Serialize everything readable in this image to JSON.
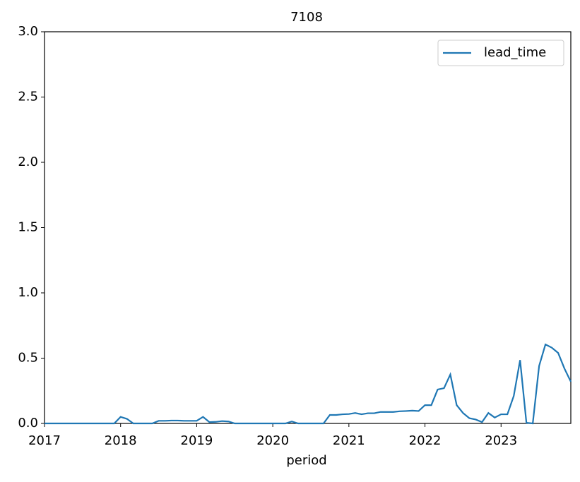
{
  "chart_data": {
    "type": "line",
    "title": "7108",
    "x_label": "period",
    "x": [
      2017,
      2017.0833,
      2017.1667,
      2017.25,
      2017.3333,
      2017.4167,
      2017.5,
      2017.5833,
      2017.6667,
      2017.75,
      2017.8333,
      2017.9167,
      2018,
      2018.0833,
      2018.1667,
      2018.25,
      2018.3333,
      2018.4167,
      2018.5,
      2018.5833,
      2018.6667,
      2018.75,
      2018.8333,
      2018.9167,
      2019,
      2019.0833,
      2019.1667,
      2019.25,
      2019.3333,
      2019.4167,
      2019.5,
      2019.5833,
      2019.6667,
      2019.75,
      2019.8333,
      2019.9167,
      2020,
      2020.0833,
      2020.1667,
      2020.25,
      2020.3333,
      2020.4167,
      2020.5,
      2020.5833,
      2020.6667,
      2020.75,
      2020.8333,
      2020.9167,
      2021,
      2021.0833,
      2021.1667,
      2021.25,
      2021.3333,
      2021.4167,
      2021.5,
      2021.5833,
      2021.6667,
      2021.75,
      2021.8333,
      2021.9167,
      2022,
      2022.0833,
      2022.1667,
      2022.25,
      2022.3333,
      2022.4167,
      2022.5,
      2022.5833,
      2022.6667,
      2022.75,
      2022.8333,
      2022.9167,
      2023,
      2023.0833,
      2023.1667,
      2023.25,
      2023.3333,
      2023.4167,
      2023.5,
      2023.5833,
      2023.6667,
      2023.75,
      2023.8333,
      2023.9167
    ],
    "series": [
      {
        "name": "lead_time",
        "color": "#1f77b4",
        "values": [
          0,
          0,
          0,
          0,
          0,
          0,
          0,
          0,
          0,
          0,
          0,
          0,
          0.05,
          0.035,
          0,
          0,
          0,
          0,
          0.02,
          0.02,
          0.022,
          0.022,
          0.02,
          0.02,
          0.02,
          0.05,
          0.01,
          0.012,
          0.018,
          0.015,
          0,
          0,
          0,
          0,
          0,
          0,
          0,
          0,
          0,
          0.015,
          0,
          0,
          0,
          0,
          0,
          0.065,
          0.065,
          0.07,
          0.072,
          0.08,
          0.07,
          0.078,
          0.078,
          0.088,
          0.088,
          0.088,
          0.093,
          0.095,
          0.098,
          0.095,
          0.14,
          0.14,
          0.26,
          0.27,
          0.375,
          0.14,
          0.08,
          0.04,
          0.03,
          0.01,
          0.08,
          0.045,
          0.07,
          0.07,
          0.21,
          0.485,
          0.005,
          0,
          0.44,
          0.605,
          0.58,
          0.54,
          0.42,
          0.32
        ]
      }
    ],
    "xlim": [
      2017,
      2023.9167
    ],
    "xticks": [
      2017,
      2018,
      2019,
      2020,
      2021,
      2022,
      2023
    ],
    "ylim": [
      0,
      3
    ],
    "yticks": [
      {
        "value": 0,
        "label": "0.0"
      },
      0.5,
      {
        "value": 1,
        "label": "1.0"
      },
      1.5,
      {
        "value": 2,
        "label": "2.0"
      },
      2.5,
      {
        "value": 3,
        "label": "3.0"
      }
    ],
    "legend": "upper right"
  }
}
